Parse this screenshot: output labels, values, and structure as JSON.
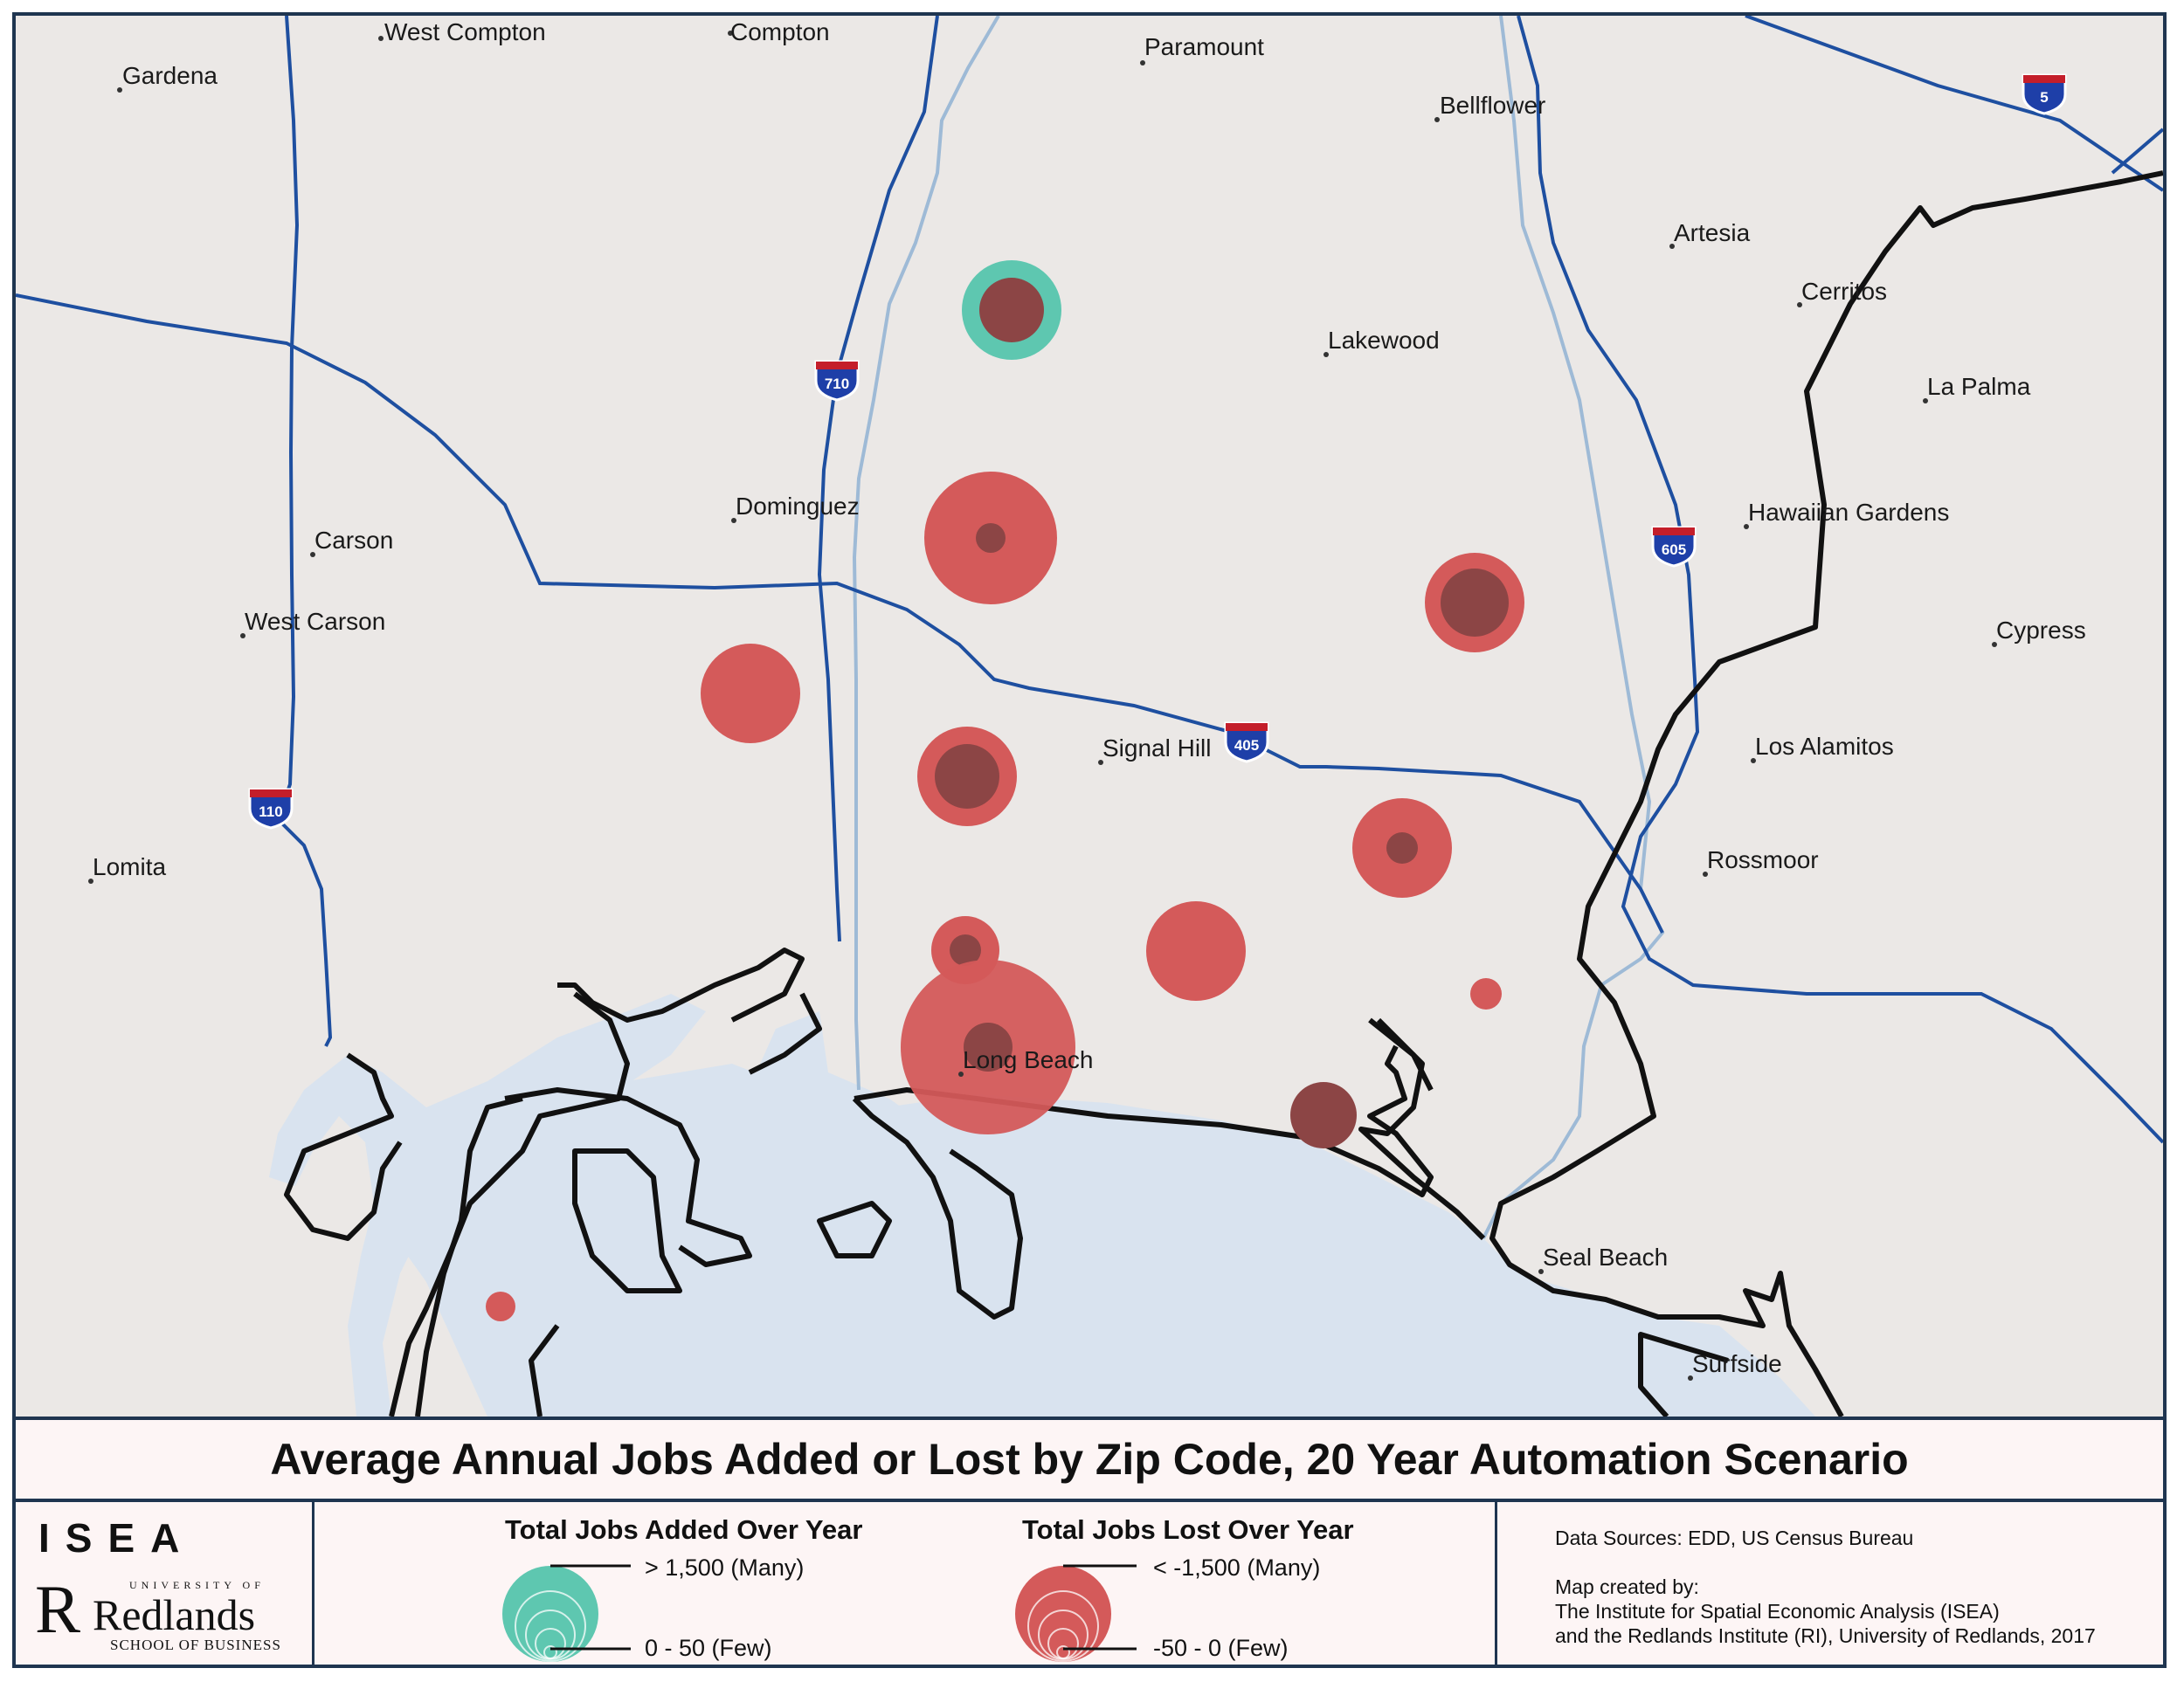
{
  "map": {
    "towns": [
      {
        "name": "West Compton"
      },
      {
        "name": "Compton"
      },
      {
        "name": "Paramount"
      },
      {
        "name": "Gardena"
      },
      {
        "name": "Bellflower"
      },
      {
        "name": "Artesia"
      },
      {
        "name": "Cerritos"
      },
      {
        "name": "Lakewood"
      },
      {
        "name": "La Palma"
      },
      {
        "name": "Dominguez"
      },
      {
        "name": "Hawaiian Gardens"
      },
      {
        "name": "Carson"
      },
      {
        "name": "West Carson"
      },
      {
        "name": "Cypress"
      },
      {
        "name": "Signal Hill"
      },
      {
        "name": "Los Alamitos"
      },
      {
        "name": "Rossmoor"
      },
      {
        "name": "Lomita"
      },
      {
        "name": "Long Beach"
      },
      {
        "name": "Seal Beach"
      },
      {
        "name": "Surfside"
      }
    ],
    "highways": [
      "5",
      "710",
      "605",
      "405",
      "110"
    ],
    "colors": {
      "land": "#ebe8e6",
      "water": "#d9e3ef",
      "highway": "#1e4fa0",
      "river": "#9ebad6",
      "boundary": "#111111",
      "jobs_added": "#5ec7b0",
      "jobs_lost": "#d45a5a",
      "jobs_lost_inner": "#8c4545"
    }
  },
  "title": "Average Annual Jobs Added or Lost by Zip Code, 20 Year Automation Scenario",
  "logo": {
    "org": "ISEA",
    "university_small": "UNIVERSITY OF",
    "university_name": "Redlands",
    "school": "SCHOOL OF BUSINESS"
  },
  "legend": {
    "added": {
      "title": "Total Jobs Added Over Year",
      "max_label": "> 1,500 (Many)",
      "min_label": "0 - 50  (Few)"
    },
    "lost": {
      "title": "Total Jobs Lost Over Year",
      "max_label": "< -1,500 (Many)",
      "min_label": "-50 - 0  (Few)"
    }
  },
  "sources": {
    "data_sources": "Data Sources: EDD, US Census Bureau",
    "created_by": "Map created by:",
    "line1": "The Institute for Spatial Economic Analysis (ISEA)",
    "line2": "and the Redlands Institute (RI), University of Redlands, 2017"
  }
}
